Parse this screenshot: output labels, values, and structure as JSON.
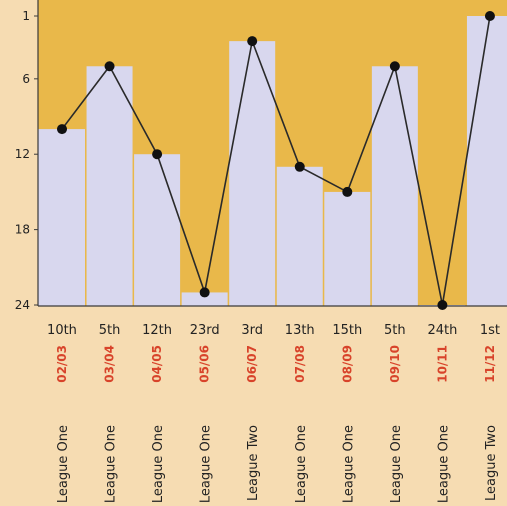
{
  "chart_data": {
    "type": "line",
    "y_inverted": true,
    "ylim": [
      1,
      24
    ],
    "yticks": [
      1,
      6,
      12,
      18,
      24
    ],
    "categories": [
      "02/03",
      "03/04",
      "04/05",
      "05/06",
      "06/07",
      "07/08",
      "08/09",
      "09/10",
      "10/11",
      "11/12"
    ],
    "position_labels": [
      "10th",
      "5th",
      "12th",
      "23rd",
      "3rd",
      "13th",
      "15th",
      "5th",
      "24th",
      "1st"
    ],
    "leagues": [
      "League One",
      "League One",
      "League One",
      "League One",
      "League Two",
      "League One",
      "League One",
      "League One",
      "League One",
      "League Two"
    ],
    "values": [
      10,
      5,
      12,
      23,
      3,
      13,
      15,
      5,
      24,
      1
    ],
    "grid": false,
    "legend": "none",
    "colors": {
      "background": "#f6dcb2",
      "plot_background": "#e9b84a",
      "bar": "#d8d7ee",
      "line": "#2a2a2a",
      "marker": "#111111",
      "season_text": "#d8432a"
    }
  }
}
